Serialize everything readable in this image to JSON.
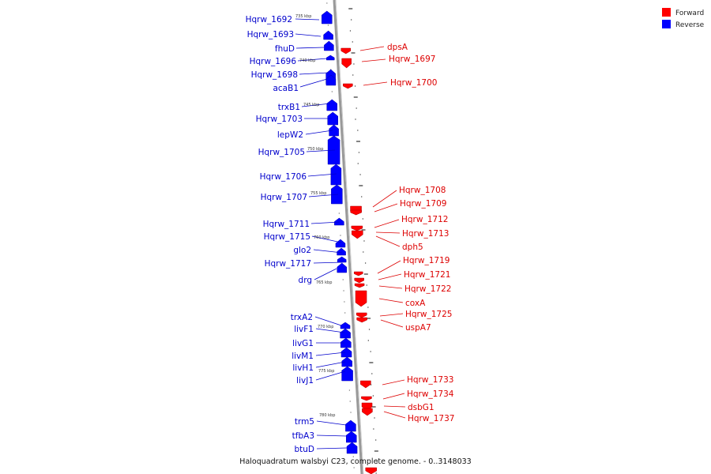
{
  "legend": [
    {
      "label": "Forward",
      "color": "#ff0000"
    },
    {
      "label": "Reverse",
      "color": "#0000ff"
    }
  ],
  "caption": "Haloquadratum walsbyi C23, complete genome. - 0..3148033",
  "colors": {
    "forward": "#ff0000",
    "reverse": "#0000ff",
    "backbone": "#888888"
  },
  "reverse_genes": [
    "Hqrw_1692",
    "Hqrw_1693",
    "fhuD",
    "Hqrw_1696",
    "Hqrw_1698",
    "acaB1",
    "trxB1",
    "Hqrw_1703",
    "lepW2",
    "Hqrw_1705",
    "Hqrw_1706",
    "Hqrw_1707",
    "Hqrw_1711",
    "Hqrw_1715",
    "glo2",
    "Hqrw_1717",
    "drg",
    "trxA2",
    "livF1",
    "livG1",
    "livM1",
    "livH1",
    "livJ1",
    "trm5",
    "tfbA3",
    "btuD"
  ],
  "forward_genes": [
    "dpsA",
    "Hqrw_1697",
    "Hqrw_1700",
    "Hqrw_1708",
    "Hqrw_1709",
    "Hqrw_1712",
    "Hqrw_1713",
    "dph5",
    "Hqrw_1719",
    "Hqrw_1721",
    "Hqrw_1722",
    "coxA",
    "Hqrw_1725",
    "uspA7",
    "Hqrw_1733",
    "Hqrw_1734",
    "dsbG1",
    "Hqrw_1737"
  ],
  "scale_ticks": [
    "735 kbp",
    "740 kbp",
    "745 kbp",
    "750 kbp",
    "755 kbp",
    "760 kbp",
    "765 kbp",
    "770 kbp",
    "775 kbp",
    "780 kbp"
  ]
}
